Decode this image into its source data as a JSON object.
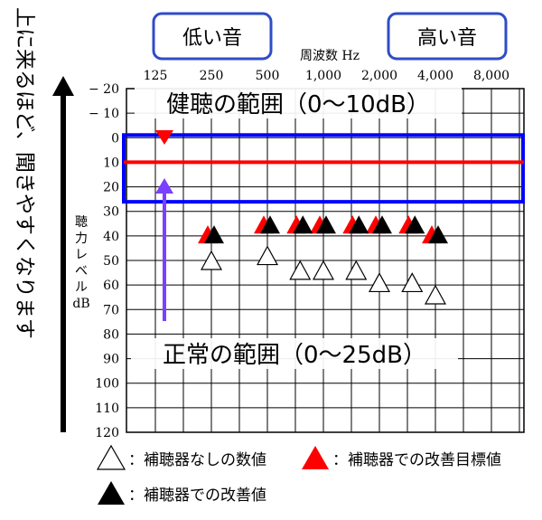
{
  "chart_data": {
    "type": "scatter",
    "title": "",
    "xlabel": "周波数 Hz",
    "ylabel": "聴力レベル dB",
    "ylabel_lines": [
      "聴",
      "力",
      "レ",
      "ベ",
      "ル",
      "dB"
    ],
    "x_ticks": [
      "125",
      "250",
      "500",
      "1,000",
      "2,000",
      "4,000",
      "8,000"
    ],
    "y_ticks": [
      -20,
      -10,
      0,
      10,
      20,
      30,
      40,
      50,
      60,
      70,
      80,
      90,
      100,
      110,
      120
    ],
    "ylim": [
      -20,
      120
    ],
    "y_inverted": true,
    "grid": true,
    "series": [
      {
        "name": "補聴器なしの数値",
        "marker": "white-triangle",
        "color": "#ffffff",
        "points": [
          {
            "x": 250,
            "y": 50
          },
          {
            "x": 500,
            "y": 48
          },
          {
            "x": 750,
            "y": 54
          },
          {
            "x": 1000,
            "y": 54
          },
          {
            "x": 1500,
            "y": 54
          },
          {
            "x": 2000,
            "y": 59
          },
          {
            "x": 3000,
            "y": 59
          },
          {
            "x": 4000,
            "y": 64
          }
        ]
      },
      {
        "name": "補聴器での改善目標値",
        "marker": "red-triangle",
        "color": "#ff0000",
        "points": [
          {
            "x": 250,
            "y": 39
          },
          {
            "x": 500,
            "y": 35
          },
          {
            "x": 750,
            "y": 35
          },
          {
            "x": 1000,
            "y": 35
          },
          {
            "x": 1500,
            "y": 35
          },
          {
            "x": 2000,
            "y": 35
          },
          {
            "x": 3000,
            "y": 35
          },
          {
            "x": 4000,
            "y": 39
          }
        ]
      },
      {
        "name": "補聴器での改善値",
        "marker": "black-triangle",
        "color": "#000000",
        "points": [
          {
            "x": 250,
            "y": 39
          },
          {
            "x": 500,
            "y": 35
          },
          {
            "x": 750,
            "y": 35
          },
          {
            "x": 1000,
            "y": 35
          },
          {
            "x": 1500,
            "y": 35
          },
          {
            "x": 2000,
            "y": 35
          },
          {
            "x": 3000,
            "y": 35
          },
          {
            "x": 4000,
            "y": 39
          }
        ]
      }
    ],
    "annotations": {
      "low_label": "低い音",
      "high_label": "高い音",
      "side_text": "上に来るほど、聞きやすくなります",
      "healthy_range": {
        "label": "健聴の範囲（0〜10dB）",
        "y": 10,
        "color": "#ff0000"
      },
      "normal_range": {
        "label": "正常の範囲（0〜25dB）",
        "y_from": 0,
        "y_to": 25,
        "color": "#0000ff"
      },
      "arrow_color": "#7b3fff",
      "box_color": "#2f4cc7"
    },
    "legend": [
      {
        "symbol": "white-triangle",
        "text": "：補聴器なしの数値"
      },
      {
        "symbol": "red-triangle",
        "text": "：補聴器での改善目標値"
      },
      {
        "symbol": "black-triangle",
        "text": "：補聴器での改善値"
      }
    ]
  }
}
